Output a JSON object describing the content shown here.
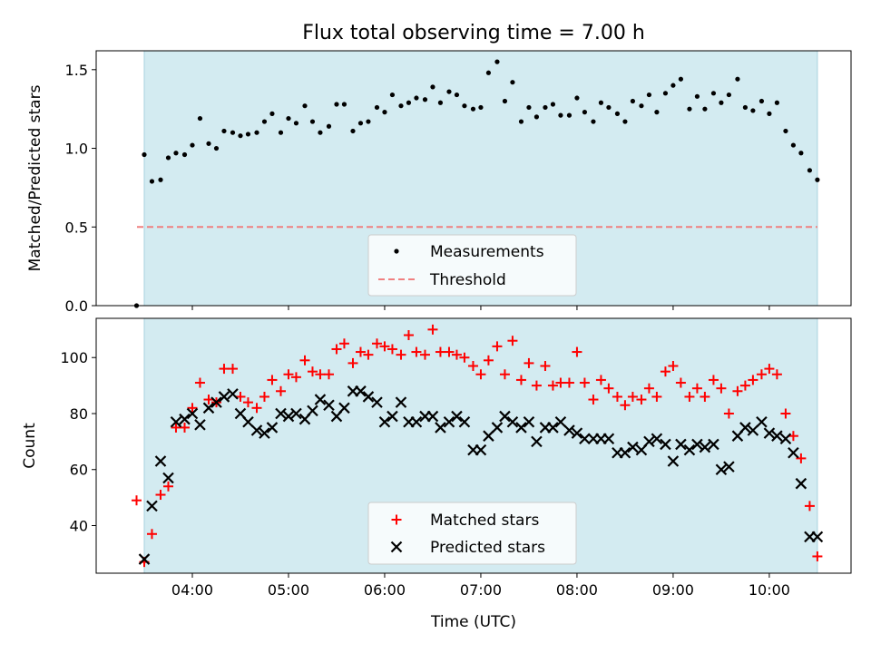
{
  "chart_data": [
    {
      "type": "scatter",
      "title": "Flux total observing time = 7.00 h",
      "xlabel": "",
      "ylabel": "Matched/Predicted stars",
      "ylim": [
        0,
        1.62
      ],
      "yticks": [
        "0.0",
        "0.5",
        "1.0",
        "1.5"
      ],
      "ytick_values": [
        0,
        0.5,
        1.0,
        1.5
      ],
      "observing_window_hours": [
        3.5,
        10.5
      ],
      "threshold": {
        "name": "Threshold",
        "value": 0.5,
        "color": "#f08080"
      },
      "legend": [
        "Measurements",
        "Threshold"
      ],
      "legend_position": "lower center",
      "series": [
        {
          "name": "Measurements",
          "color": "#000000",
          "x": [
            3.42,
            3.5,
            3.58,
            3.67,
            3.75,
            3.83,
            3.92,
            4.0,
            4.08,
            4.17,
            4.25,
            4.33,
            4.42,
            4.5,
            4.58,
            4.67,
            4.75,
            4.83,
            4.92,
            5.0,
            5.08,
            5.17,
            5.25,
            5.33,
            5.42,
            5.5,
            5.58,
            5.67,
            5.75,
            5.83,
            5.92,
            6.0,
            6.08,
            6.17,
            6.25,
            6.33,
            6.42,
            6.5,
            6.58,
            6.67,
            6.75,
            6.83,
            6.92,
            7.0,
            7.08,
            7.17,
            7.25,
            7.33,
            7.42,
            7.5,
            7.58,
            7.67,
            7.75,
            7.83,
            7.92,
            8.0,
            8.08,
            8.17,
            8.25,
            8.33,
            8.42,
            8.5,
            8.58,
            8.67,
            8.75,
            8.83,
            8.92,
            9.0,
            9.08,
            9.17,
            9.25,
            9.33,
            9.42,
            9.5,
            9.58,
            9.67,
            9.75,
            9.83,
            9.92,
            10.0,
            10.08,
            10.17,
            10.25,
            10.33,
            10.42,
            10.5
          ],
          "y": [
            0.0,
            0.96,
            0.79,
            0.8,
            0.94,
            0.97,
            0.96,
            1.02,
            1.19,
            1.03,
            1.0,
            1.11,
            1.1,
            1.08,
            1.09,
            1.1,
            1.17,
            1.22,
            1.1,
            1.19,
            1.16,
            1.27,
            1.17,
            1.1,
            1.14,
            1.28,
            1.28,
            1.11,
            1.16,
            1.17,
            1.26,
            1.23,
            1.34,
            1.27,
            1.29,
            1.32,
            1.31,
            1.39,
            1.29,
            1.36,
            1.34,
            1.27,
            1.25,
            1.26,
            1.48,
            1.55,
            1.3,
            1.42,
            1.17,
            1.26,
            1.2,
            1.26,
            1.28,
            1.21,
            1.21,
            1.32,
            1.23,
            1.17,
            1.29,
            1.26,
            1.22,
            1.17,
            1.3,
            1.27,
            1.34,
            1.23,
            1.35,
            1.4,
            1.44,
            1.25,
            1.33,
            1.25,
            1.35,
            1.29,
            1.34,
            1.44,
            1.26,
            1.24,
            1.3,
            1.22,
            1.29,
            1.11,
            1.02,
            0.97,
            0.86,
            0.8
          ]
        }
      ]
    },
    {
      "type": "scatter",
      "title": "",
      "xlabel": "Time (UTC)",
      "ylabel": "Count",
      "ylim": [
        23,
        114
      ],
      "yticks": [
        "40",
        "60",
        "80",
        "100"
      ],
      "ytick_values": [
        40,
        60,
        80,
        100
      ],
      "xticks": [
        "04:00",
        "05:00",
        "06:00",
        "07:00",
        "08:00",
        "09:00",
        "10:00"
      ],
      "xtick_values": [
        4,
        5,
        6,
        7,
        8,
        9,
        10
      ],
      "xlim": [
        3.0,
        10.85
      ],
      "observing_window_hours": [
        3.5,
        10.5
      ],
      "legend": [
        "Matched stars",
        "Predicted stars"
      ],
      "legend_position": "lower center",
      "series": [
        {
          "name": "Matched stars",
          "marker": "plus",
          "color": "#ff0000",
          "x": [
            3.42,
            3.5,
            3.58,
            3.67,
            3.75,
            3.83,
            3.92,
            4.0,
            4.08,
            4.17,
            4.25,
            4.33,
            4.42,
            4.5,
            4.58,
            4.67,
            4.75,
            4.83,
            4.92,
            5.0,
            5.08,
            5.17,
            5.25,
            5.33,
            5.42,
            5.5,
            5.58,
            5.67,
            5.75,
            5.83,
            5.92,
            6.0,
            6.08,
            6.17,
            6.25,
            6.33,
            6.42,
            6.5,
            6.58,
            6.67,
            6.75,
            6.83,
            6.92,
            7.0,
            7.08,
            7.17,
            7.25,
            7.33,
            7.42,
            7.5,
            7.58,
            7.67,
            7.75,
            7.83,
            7.92,
            8.0,
            8.08,
            8.17,
            8.25,
            8.33,
            8.42,
            8.5,
            8.58,
            8.67,
            8.75,
            8.83,
            8.92,
            9.0,
            9.08,
            9.17,
            9.25,
            9.33,
            9.42,
            9.5,
            9.58,
            9.67,
            9.75,
            9.83,
            9.92,
            10.0,
            10.08,
            10.17,
            10.25,
            10.33,
            10.42,
            10.5
          ],
          "y": [
            49,
            27,
            37,
            51,
            54,
            75,
            75,
            82,
            91,
            85,
            84,
            96,
            96,
            86,
            84,
            82,
            86,
            92,
            88,
            94,
            93,
            99,
            95,
            94,
            94,
            103,
            105,
            98,
            102,
            101,
            105,
            104,
            103,
            101,
            108,
            102,
            101,
            110,
            102,
            102,
            101,
            100,
            97,
            94,
            99,
            104,
            94,
            106,
            92,
            98,
            90,
            97,
            90,
            91,
            91,
            102,
            91,
            85,
            92,
            89,
            86,
            83,
            86,
            85,
            89,
            86,
            95,
            97,
            91,
            86,
            89,
            86,
            92,
            89,
            80,
            88,
            90,
            92,
            94,
            96,
            94,
            80,
            72,
            64,
            47,
            29
          ]
        },
        {
          "name": "Predicted stars",
          "marker": "cross",
          "color": "#000000",
          "x": [
            3.5,
            3.58,
            3.67,
            3.75,
            3.83,
            3.92,
            4.0,
            4.08,
            4.17,
            4.25,
            4.33,
            4.42,
            4.5,
            4.58,
            4.67,
            4.75,
            4.83,
            4.92,
            5.0,
            5.08,
            5.17,
            5.25,
            5.33,
            5.42,
            5.5,
            5.58,
            5.67,
            5.75,
            5.83,
            5.92,
            6.0,
            6.08,
            6.17,
            6.25,
            6.33,
            6.42,
            6.5,
            6.58,
            6.67,
            6.75,
            6.83,
            6.92,
            7.0,
            7.08,
            7.17,
            7.25,
            7.33,
            7.42,
            7.5,
            7.58,
            7.67,
            7.75,
            7.83,
            7.92,
            8.0,
            8.08,
            8.17,
            8.25,
            8.33,
            8.42,
            8.5,
            8.58,
            8.67,
            8.75,
            8.83,
            8.92,
            9.0,
            9.08,
            9.17,
            9.25,
            9.33,
            9.42,
            9.5,
            9.58,
            9.67,
            9.75,
            9.83,
            9.92,
            10.0,
            10.08,
            10.17,
            10.25,
            10.33,
            10.42,
            10.5
          ],
          "y": [
            28,
            47,
            63,
            57,
            77,
            78,
            80,
            76,
            82,
            84,
            86,
            87,
            80,
            77,
            74,
            73,
            75,
            80,
            79,
            80,
            78,
            81,
            85,
            83,
            79,
            82,
            88,
            88,
            86,
            84,
            77,
            79,
            84,
            77,
            77,
            79,
            79,
            75,
            77,
            79,
            77,
            67,
            67,
            72,
            75,
            79,
            77,
            75,
            77,
            70,
            75,
            75,
            77,
            74,
            73,
            71,
            71,
            71,
            71,
            66,
            66,
            68,
            67,
            70,
            71,
            69,
            63,
            69,
            67,
            69,
            68,
            69,
            60,
            61,
            72,
            75,
            74,
            77,
            73,
            72,
            71,
            66,
            55,
            36,
            36
          ]
        }
      ]
    }
  ],
  "colors": {
    "observing_window_fill": "#d3ebf1",
    "observing_window_edge": "#a9d3df"
  }
}
